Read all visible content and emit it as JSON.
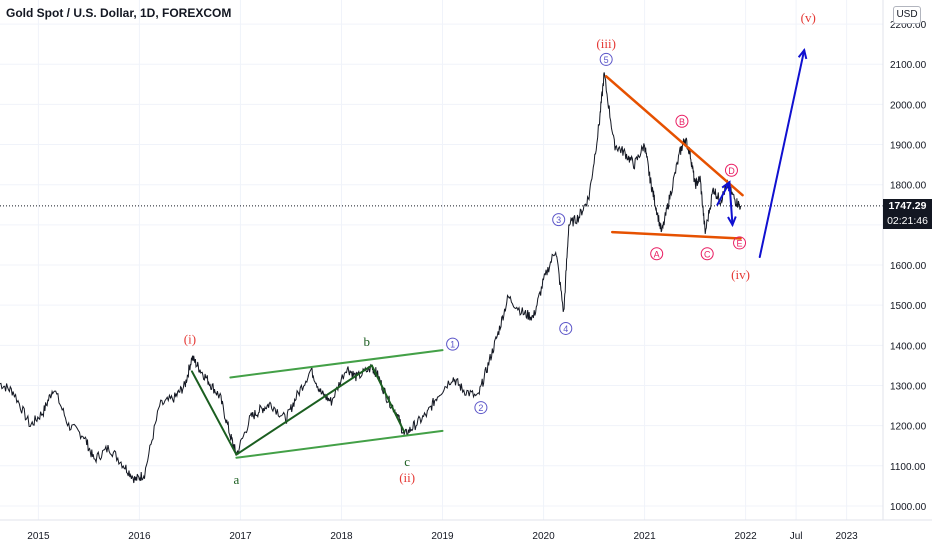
{
  "header": {
    "title": "Gold Spot / U.S. Dollar, 1D, FOREXCOM",
    "currency": "USD"
  },
  "last_price": {
    "value": "1747.29",
    "countdown": "02:21:46"
  },
  "colors": {
    "candle": "#131722",
    "green_channel": "#43a047",
    "dark_green": "#1b5e20",
    "orange": "#e65100",
    "blue": "#1010d0",
    "red_label": "#e53935",
    "purple": "#5b55c8",
    "pink": "#e91e63",
    "axis_text": "#131722",
    "grid": "#f0f3fa"
  },
  "chart_data": {
    "type": "line",
    "xaxis": {
      "tick_labels": [
        "2015",
        "2016",
        "2017",
        "2018",
        "2019",
        "2020",
        "2021",
        "2022",
        "Jul",
        "2023"
      ],
      "tick_values": [
        2015.0,
        2016.0,
        2017.0,
        2018.0,
        2019.0,
        2020.0,
        2021.0,
        2022.0,
        2022.5,
        2023.0
      ],
      "range": [
        2014.62,
        2023.36
      ]
    },
    "yaxis": {
      "tick_labels": [
        "1000.00",
        "1100.00",
        "1200.00",
        "1300.00",
        "1400.00",
        "1500.00",
        "1600.00",
        "1700.00",
        "1800.00",
        "1900.00",
        "2000.00",
        "2100.00",
        "2200.00"
      ],
      "ticks": [
        1000,
        1100,
        1200,
        1300,
        1400,
        1500,
        1600,
        1700,
        1800,
        1900,
        2000,
        2100,
        2200
      ],
      "range": [
        965,
        2260
      ]
    },
    "series": [
      {
        "values": [
          [
            2014.62,
            1305
          ],
          [
            2014.75,
            1285
          ],
          [
            2014.92,
            1200
          ],
          [
            2015.05,
            1235
          ],
          [
            2015.15,
            1295
          ],
          [
            2015.3,
            1200
          ],
          [
            2015.45,
            1175
          ],
          [
            2015.55,
            1115
          ],
          [
            2015.7,
            1145
          ],
          [
            2015.85,
            1100
          ],
          [
            2015.96,
            1065
          ],
          [
            2016.05,
            1080
          ],
          [
            2016.2,
            1250
          ],
          [
            2016.35,
            1270
          ],
          [
            2016.45,
            1300
          ],
          [
            2016.52,
            1370
          ],
          [
            2016.6,
            1340
          ],
          [
            2016.7,
            1305
          ],
          [
            2016.8,
            1270
          ],
          [
            2016.9,
            1175
          ],
          [
            2016.96,
            1128
          ],
          [
            2017.1,
            1220
          ],
          [
            2017.2,
            1240
          ],
          [
            2017.3,
            1255
          ],
          [
            2017.45,
            1215
          ],
          [
            2017.55,
            1270
          ],
          [
            2017.7,
            1340
          ],
          [
            2017.8,
            1280
          ],
          [
            2017.9,
            1260
          ],
          [
            2018.05,
            1345
          ],
          [
            2018.15,
            1320
          ],
          [
            2018.3,
            1345
          ],
          [
            2018.35,
            1330
          ],
          [
            2018.45,
            1270
          ],
          [
            2018.55,
            1230
          ],
          [
            2018.62,
            1175
          ],
          [
            2018.72,
            1200
          ],
          [
            2018.85,
            1230
          ],
          [
            2018.95,
            1275
          ],
          [
            2019.1,
            1320
          ],
          [
            2019.2,
            1290
          ],
          [
            2019.35,
            1270
          ],
          [
            2019.45,
            1350
          ],
          [
            2019.55,
            1430
          ],
          [
            2019.65,
            1520
          ],
          [
            2019.8,
            1480
          ],
          [
            2019.9,
            1470
          ],
          [
            2020.0,
            1560
          ],
          [
            2020.12,
            1640
          ],
          [
            2020.2,
            1480
          ],
          [
            2020.25,
            1700
          ],
          [
            2020.35,
            1720
          ],
          [
            2020.45,
            1770
          ],
          [
            2020.55,
            1950
          ],
          [
            2020.6,
            2075
          ],
          [
            2020.7,
            1900
          ],
          [
            2020.8,
            1880
          ],
          [
            2020.9,
            1850
          ],
          [
            2021.0,
            1900
          ],
          [
            2021.05,
            1820
          ],
          [
            2021.1,
            1760
          ],
          [
            2021.17,
            1680
          ],
          [
            2021.25,
            1770
          ],
          [
            2021.35,
            1880
          ],
          [
            2021.4,
            1915
          ],
          [
            2021.45,
            1880
          ],
          [
            2021.5,
            1800
          ],
          [
            2021.55,
            1815
          ],
          [
            2021.6,
            1680
          ],
          [
            2021.68,
            1790
          ],
          [
            2021.75,
            1760
          ],
          [
            2021.82,
            1800
          ],
          [
            2021.9,
            1760
          ],
          [
            2021.95,
            1747
          ]
        ]
      }
    ],
    "wave_labels": [
      {
        "text": "(i)",
        "color": "red"
      },
      {
        "text": "(ii)",
        "color": "red"
      },
      {
        "text": "(iii)",
        "color": "red"
      },
      {
        "text": "(iv)",
        "color": "red"
      },
      {
        "text": "(v)",
        "color": "red"
      },
      {
        "text": "a",
        "color": "green"
      },
      {
        "text": "b",
        "color": "green"
      },
      {
        "text": "c",
        "color": "green"
      },
      {
        "text": "1",
        "color": "purple"
      },
      {
        "text": "2",
        "color": "purple"
      },
      {
        "text": "3",
        "color": "purple"
      },
      {
        "text": "4",
        "color": "purple"
      },
      {
        "text": "5",
        "color": "purple"
      },
      {
        "text": "A",
        "color": "pink"
      },
      {
        "text": "B",
        "color": "pink"
      },
      {
        "text": "C",
        "color": "pink"
      },
      {
        "text": "D",
        "color": "pink"
      },
      {
        "text": "E",
        "color": "pink"
      }
    ]
  }
}
